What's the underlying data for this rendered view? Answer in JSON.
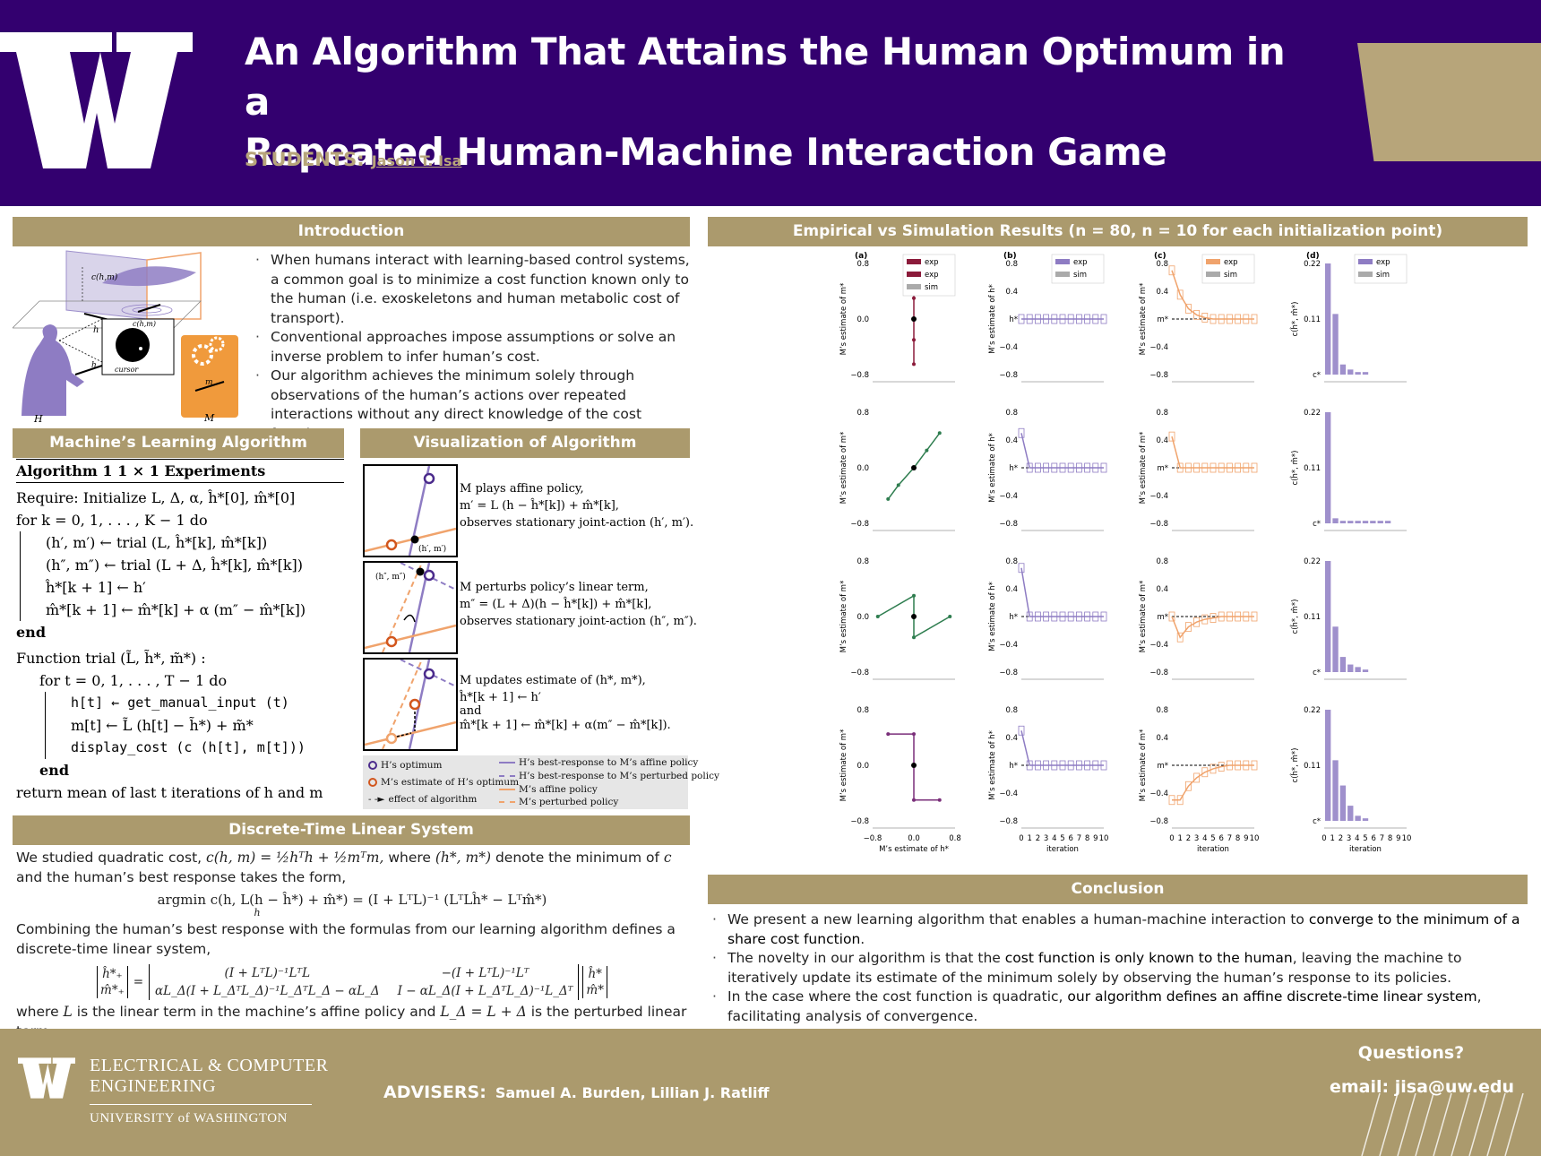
{
  "header": {
    "title_line1": "An Algorithm That Attains the Human Optimum in a",
    "title_line2": "Repeated Human-Machine Interaction Game",
    "students_label": "STUDENTS:",
    "student_name": "Jason T. Isa",
    "colors": {
      "purple": "#33006f",
      "gold": "#b7a57a"
    }
  },
  "intro": {
    "heading": "Introduction",
    "bullets": [
      "When humans interact with learning-based control systems, a common goal is to minimize a cost function known only to the human (i.e. exoskeletons and human metabolic cost of transport).",
      "Conventional approaches impose assumptions or solve an inverse problem to infer human’s cost.",
      "Our algorithm achieves the minimum solely through observations of the human’s actions over repeated interactions without any direct knowledge of the cost function."
    ],
    "figure_labels": {
      "c_hm": "c(h,m)",
      "h": "h",
      "m": "m",
      "H": "H",
      "M": "M",
      "cursor": "cursor"
    }
  },
  "algorithm": {
    "heading": "Machine’s Learning Algorithm",
    "caption": "Algorithm 1  1 × 1 Experiments",
    "lines": [
      "Require: Initialize L, Δ, α, ĥ*[0], m̂*[0]",
      "for k = 0, 1, . . . , K − 1 do",
      "(h′, m′) ← trial (L, ĥ*[k], m̂*[k])",
      "(h″, m″) ← trial (L + Δ, ĥ*[k], m̂*[k])",
      "ĥ*[k + 1] ← h′",
      "m̂*[k + 1] ← m̂*[k] + α (m″ − m̂*[k])",
      "end",
      "Function trial (L̃, h̃*, m̃*) :",
      "for t = 0, 1, . . . , T − 1 do",
      "h[t] ← get_manual_input (t)",
      "m[t] ← L̃ (h[t] − h̃*) + m̃*",
      "display_cost (c (h[t], m[t]))",
      "end",
      "return mean of last t iterations of h and m"
    ]
  },
  "viz": {
    "heading": "Visualization of Algorithm",
    "step1": [
      "M plays affine policy,",
      "m′ = L (h − ĥ*[k]) + m̂*[k],",
      "observes stationary joint-action (h′, m′)."
    ],
    "step2": [
      "M perturbs policy’s linear term,",
      "m″ = (L + Δ)(h − ĥ*[k]) + m̂*[k],",
      "observes stationary joint-action (h″, m″)."
    ],
    "step3": [
      "M updates estimate of (h*, m*),",
      "ĥ*[k + 1] ← h′",
      "and",
      "m̂*[k + 1] ← m̂*[k] + α(m″ − m̂*[k])."
    ],
    "point1": "(h′, m′)",
    "point2": "(h″, m″)",
    "legend": [
      "H’s optimum",
      "M’s estimate of H’s optimum",
      "effect of algorithm",
      "H’s best-response to M’s affine policy",
      "H’s best-response to M’s perturbed policy",
      "M’s affine policy",
      "M’s perturbed policy"
    ]
  },
  "dtls": {
    "heading": "Discrete-Time Linear System",
    "p1a": "We studied quadratic cost,",
    "p1_eq": "c(h, m) = ½hᵀh + ½mᵀm,",
    "p1b": "where",
    "p1_pair": "(h*, m*)",
    "p1c": "denote the minimum of",
    "p1_c": "c",
    "p1d": "and the human’s best response takes the form,",
    "eq1": "argmin c(h, L(h − ĥ*) + m̂*) = (I + LᵀL)⁻¹ (LᵀLĥ* − Lᵀm̂*)",
    "eq1_sub": "h",
    "p2": "Combining the human’s best response with the formulas from our learning algorithm defines a discrete-time linear system,",
    "p3a": "where",
    "p3_L": "L",
    "p3b": "is the linear term in the machine’s affine policy and",
    "p3_LD": "L_Δ = L + Δ",
    "p3c": "is the perturbed linear term.",
    "matrix": {
      "lhs": [
        "ĥ*₊",
        "m̂*₊"
      ],
      "a11": "(I + LᵀL)⁻¹LᵀL",
      "a12": "−(I + LᵀL)⁻¹Lᵀ",
      "a21": "αL_Δ(I + L_ΔᵀL_Δ)⁻¹L_ΔᵀL_Δ − αL_Δ",
      "a22": "I − αL_Δ(I + L_ΔᵀL_Δ)⁻¹L_Δᵀ",
      "rhs": [
        "ĥ*",
        "m̂*"
      ]
    }
  },
  "results": {
    "heading": "Empirical vs Simulation Results (n = 80, n = 10 for each initialization point)",
    "panel_letters": [
      "(a)",
      "(b)",
      "(c)",
      "(d)"
    ],
    "legend_a": [
      "exp",
      "exp",
      "sim"
    ],
    "legend_b": [
      "exp",
      "sim"
    ],
    "ylabel_a": "M’s estimate of m*",
    "ylabel_b": "M’s estimate of h*",
    "ylabel_c": "M’s estimate of m*",
    "ylabel_d": "c(ĥ*, m̂*)",
    "xlabel_a": "M’s estimate of h*",
    "xlabel_iter": "iteration",
    "yticks_a": [
      "0.8",
      "0.0",
      "−0.8"
    ],
    "yticks_b": [
      "0.8",
      "0.4",
      "h*",
      "−0.4",
      "−0.8"
    ],
    "yticks_c": [
      "0.8",
      "0.4",
      "m*",
      "−0.4",
      "−0.8"
    ],
    "yticks_d": [
      "0.22",
      "0.11",
      "c*"
    ],
    "xticks_a": [
      "−0.8",
      "0.0",
      "0.8"
    ],
    "xticks_iter": [
      "0",
      "1",
      "2",
      "3",
      "4",
      "5",
      "6",
      "7",
      "8",
      "9",
      "10"
    ],
    "colors": {
      "exp_purple": "#8e7cc3",
      "exp_orange": "#f0a36c",
      "sim_gray": "#aaaaaa",
      "dark_red": "#8b1a3a",
      "green": "#2e7d4f"
    }
  },
  "chart_data": [
    {
      "type": "line",
      "title": "",
      "panel": "(a)",
      "xlabel": "M’s estimate of h*",
      "ylabel": "M’s estimate of m*",
      "xlim": [
        -0.8,
        0.8
      ],
      "ylim": [
        -0.8,
        0.8
      ],
      "rows": [
        {
          "series": [
            {
              "x": [
                0.0,
                0.0,
                0.0,
                0.0,
                0.0
              ],
              "y": [
                0.65,
                0.3,
                0.0,
                -0.3,
                -0.65
              ]
            }
          ]
        },
        {
          "series": [
            {
              "x": [
                0.5,
                0.25,
                0.0,
                -0.3,
                -0.5
              ],
              "y": [
                0.5,
                0.25,
                0.0,
                -0.25,
                -0.45
              ]
            }
          ]
        },
        {
          "series": [
            {
              "x": [
                -0.7,
                0.0,
                0.0,
                0.7
              ],
              "y": [
                0.0,
                0.3,
                -0.3,
                0.0
              ]
            }
          ]
        },
        {
          "series": [
            {
              "x": [
                -0.5,
                0.0,
                0.0,
                0.5
              ],
              "y": [
                0.45,
                0.45,
                -0.5,
                -0.5
              ]
            }
          ]
        }
      ]
    },
    {
      "type": "line",
      "panel": "(b)",
      "xlabel": "iteration",
      "ylabel": "M’s estimate of h*",
      "x": [
        0,
        1,
        2,
        3,
        4,
        5,
        6,
        7,
        8,
        9,
        10
      ],
      "ylim": [
        -0.8,
        0.8
      ],
      "series": [
        {
          "name": "exp",
          "rows": [
            [
              0,
              0,
              0,
              0,
              0,
              0,
              0,
              0,
              0,
              0,
              0
            ],
            [
              0.5,
              0,
              0,
              0,
              0,
              0,
              0,
              0,
              0,
              0,
              0
            ],
            [
              0.7,
              0,
              0,
              0,
              0,
              0,
              0,
              0,
              0,
              0,
              0
            ],
            [
              0.5,
              0,
              0,
              0,
              0,
              0,
              0,
              0,
              0,
              0,
              0
            ]
          ]
        }
      ]
    },
    {
      "type": "line",
      "panel": "(c)",
      "xlabel": "iteration",
      "ylabel": "M’s estimate of m*",
      "x": [
        0,
        1,
        2,
        3,
        4,
        5,
        6,
        7,
        8,
        9,
        10
      ],
      "ylim": [
        -0.8,
        0.8
      ],
      "series": [
        {
          "name": "exp",
          "rows": [
            [
              0.7,
              0.35,
              0.15,
              0.06,
              0.02,
              0.0,
              0.0,
              0.0,
              0.0,
              0.0,
              0.0
            ],
            [
              0.45,
              0,
              0,
              0,
              0,
              0,
              0,
              0,
              0,
              0,
              0
            ],
            [
              0.0,
              -0.3,
              -0.15,
              -0.08,
              -0.04,
              -0.02,
              0.0,
              0.0,
              0.0,
              0.0,
              0.0
            ],
            [
              -0.5,
              -0.5,
              -0.3,
              -0.18,
              -0.1,
              -0.05,
              -0.02,
              0.0,
              0.0,
              0.0,
              0.0
            ]
          ]
        }
      ]
    },
    {
      "type": "bar",
      "panel": "(d)",
      "xlabel": "iteration",
      "ylabel": "c(ĥ*, m̂*)",
      "categories": [
        "0",
        "1",
        "2",
        "3",
        "4",
        "5",
        "6",
        "7",
        "8",
        "9",
        "10"
      ],
      "ylim": [
        0,
        0.22
      ],
      "series": [
        {
          "name": "exp",
          "rows": [
            [
              0.22,
              0.12,
              0.02,
              0.01,
              0.005,
              0.005,
              0,
              0,
              0,
              0,
              0
            ],
            [
              0.22,
              0.01,
              0.005,
              0.005,
              0.005,
              0.005,
              0.005,
              0.005,
              0.005,
              0,
              0
            ],
            [
              0.22,
              0.09,
              0.03,
              0.015,
              0.01,
              0.005,
              0,
              0,
              0,
              0,
              0
            ],
            [
              0.22,
              0.12,
              0.07,
              0.03,
              0.01,
              0.005,
              0,
              0,
              0,
              0,
              0
            ]
          ]
        }
      ]
    }
  ],
  "conclusion": {
    "heading": "Conclusion",
    "b1a": "We present a new learning algorithm that enables a human-machine interaction to",
    "b1b": "converge to the minimum of a share cost function",
    "b1c": ".",
    "b2a": "The novelty in our algorithm is that the",
    "b2b": "cost function is only known to the human",
    "b2c": ", leaving the machine to iteratively update its estimate of the minimum solely by observing the human’s response to its policies.",
    "b3a": "In the case where the cost function is quadratic,",
    "b3b": "our algorithm defines an affine discrete-time linear system",
    "b3c": ", facilitating analysis of convergence."
  },
  "footer": {
    "dept_line1": "ELECTRICAL & COMPUTER",
    "dept_line2": "ENGINEERING",
    "university": "UNIVERSITY of WASHINGTON",
    "advisers_label": "ADVISERS:",
    "advisers_names": "Samuel A. Burden, Lillian J. Ratliff",
    "questions": "Questions?",
    "email": "email: jisa@uw.edu"
  }
}
